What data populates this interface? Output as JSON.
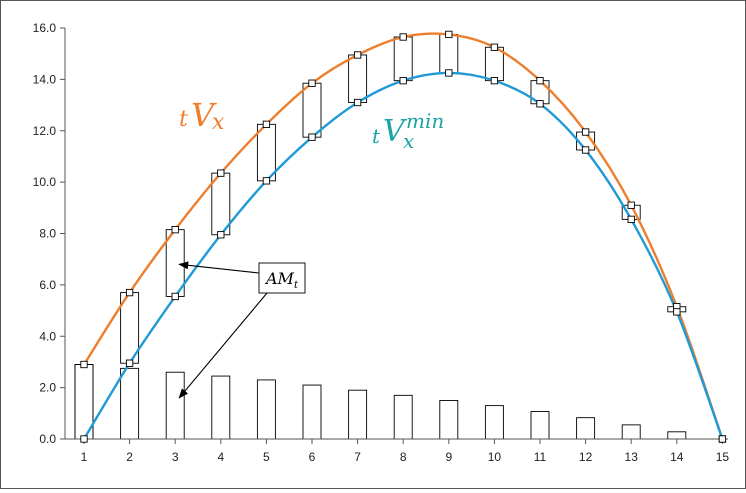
{
  "chart_data": {
    "type": "line",
    "x": [
      1,
      2,
      3,
      4,
      5,
      6,
      7,
      8,
      9,
      10,
      11,
      12,
      13,
      14,
      15
    ],
    "xlim": [
      1,
      15
    ],
    "ylim": [
      0,
      16
    ],
    "yticks": [
      "0.0",
      "2.0",
      "4.0",
      "6.0",
      "8.0",
      "10.0",
      "12.0",
      "14.0",
      "16.0"
    ],
    "xticks": [
      "1",
      "2",
      "3",
      "4",
      "5",
      "6",
      "7",
      "8",
      "9",
      "10",
      "11",
      "12",
      "13",
      "14",
      "15"
    ],
    "grid": false,
    "series": [
      {
        "name": "tV_x",
        "label_main": "V",
        "label_prefix": "t",
        "label_sub": "x",
        "label_sup": "",
        "color": "#ee7d2c",
        "values": [
          2.9,
          5.7,
          8.15,
          10.35,
          12.25,
          13.85,
          14.95,
          15.65,
          15.75,
          15.25,
          13.95,
          11.95,
          9.1,
          5.15,
          0.0
        ]
      },
      {
        "name": "tV_x^min",
        "label_main": "V",
        "label_prefix": "t",
        "label_sub": "x",
        "label_sup": "min",
        "color": "#1f9ad6",
        "values": [
          0.0,
          2.95,
          5.55,
          7.95,
          10.05,
          11.75,
          13.1,
          13.95,
          14.25,
          13.95,
          13.05,
          11.25,
          8.55,
          4.95,
          0.0
        ]
      }
    ],
    "bars": {
      "name": "AM_t",
      "values": [
        2.9,
        2.75,
        2.6,
        2.45,
        2.3,
        2.1,
        1.9,
        1.7,
        1.5,
        1.3,
        1.07,
        0.83,
        0.55,
        0.28,
        0.0
      ]
    },
    "annotation": {
      "text_main": "AM",
      "text_sub": "t",
      "arrow_targets": [
        {
          "x": 3,
          "y": 6.8
        },
        {
          "x": 3,
          "y": 1.6
        }
      ]
    },
    "label_colors": {
      "tV_x": "#ee7d2c",
      "tV_x^min": "#1ba3a6"
    }
  }
}
